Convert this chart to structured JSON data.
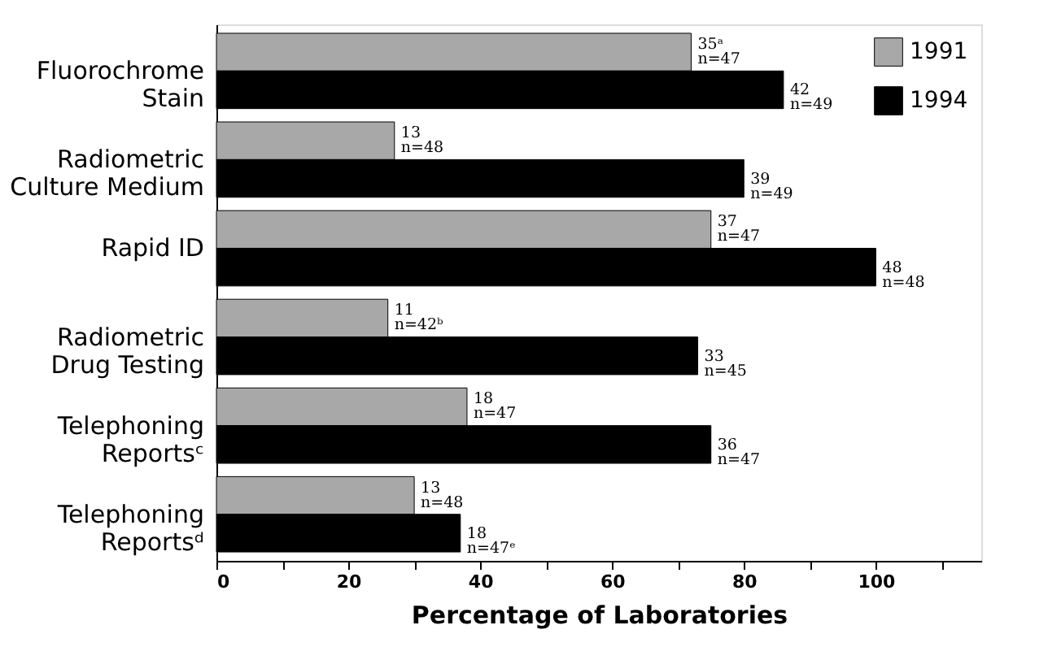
{
  "chart_data": {
    "type": "bar",
    "orientation": "horizontal",
    "xlabel": "Percentage of Laboratories",
    "categories": [
      "Fluorochrome\nStain",
      "Radiometric\nCulture Medium",
      "Rapid ID",
      "Radiometric\nDrug Testing",
      "Telephoning\nReportsᶜ",
      "Telephoning\nReportsᵈ"
    ],
    "series": [
      {
        "name": "1991",
        "color": "#a8a8a8",
        "values": [
          72,
          27,
          75,
          26,
          38,
          30
        ]
      },
      {
        "name": "1994",
        "color": "#000000",
        "values": [
          86,
          80,
          100,
          73,
          75,
          37
        ]
      }
    ],
    "annotations": [
      "35ᵃ\nn=47",
      "42\nn=49",
      "13\nn=48",
      "39\nn=49",
      "37\nn=47",
      "48\nn=48",
      "11\nn=42ᵇ",
      "33\nn=45",
      "18\nn=47",
      "36\nn=47",
      "13\nn=48",
      "18\nn=47ᵉ"
    ],
    "xlim": [
      0,
      116
    ],
    "xticks": [
      0,
      {
        "value": 10,
        "label": null
      },
      20,
      {
        "value": 30,
        "label": null
      },
      40,
      {
        "value": 50,
        "label": null
      },
      60,
      {
        "value": 70,
        "label": null
      },
      80,
      {
        "value": 90,
        "label": null
      },
      100,
      {
        "value": 110,
        "label": null
      }
    ],
    "grid": false,
    "legend": "top right"
  }
}
